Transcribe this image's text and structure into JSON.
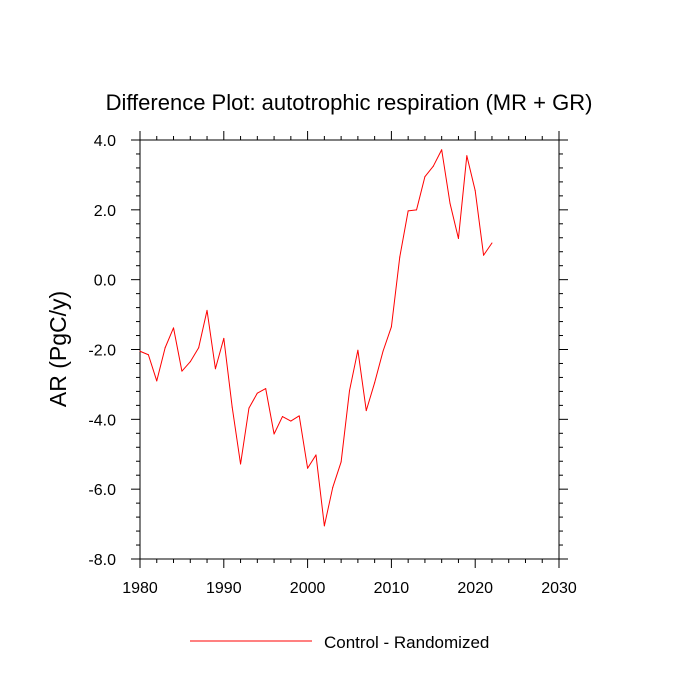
{
  "chart_data": {
    "type": "line",
    "title": "Difference Plot: autotrophic respiration (MR + GR)",
    "xlabel": "",
    "ylabel": "AR  (PgC/y)",
    "xlim": [
      1980,
      2030
    ],
    "ylim": [
      -8.0,
      4.0
    ],
    "x_ticks": [
      1980,
      1990,
      2000,
      2010,
      2020,
      2030
    ],
    "x_tick_labels": [
      "1980",
      "1990",
      "2000",
      "2010",
      "2020",
      "2030"
    ],
    "y_ticks": [
      -8.0,
      -6.0,
      -4.0,
      -2.0,
      0.0,
      2.0,
      4.0
    ],
    "y_tick_labels": [
      "-8.0",
      "-6.0",
      "-4.0",
      "-2.0",
      "0.0",
      "2.0",
      "4.0"
    ],
    "grid": false,
    "legend_position": "bottom-center",
    "series": [
      {
        "name": "Control - Randomized",
        "color": "#ff0000",
        "x": [
          1980,
          1981,
          1982,
          1983,
          1984,
          1985,
          1986,
          1987,
          1988,
          1989,
          1990,
          1991,
          1992,
          1993,
          1994,
          1995,
          1996,
          1997,
          1998,
          1999,
          2000,
          2001,
          2002,
          2003,
          2004,
          2005,
          2006,
          2007,
          2008,
          2009,
          2010,
          2011,
          2012,
          2013,
          2014,
          2015,
          2016,
          2017,
          2018,
          2019,
          2020,
          2021,
          2022
        ],
        "y": [
          -2.05,
          -2.15,
          -2.9,
          -1.95,
          -1.38,
          -2.62,
          -2.35,
          -1.95,
          -0.88,
          -2.55,
          -1.68,
          -3.65,
          -5.28,
          -3.68,
          -3.25,
          -3.12,
          -4.42,
          -3.92,
          -4.05,
          -3.9,
          -5.4,
          -5.02,
          -7.05,
          -5.95,
          -5.22,
          -3.18,
          -2.02,
          -3.75,
          -2.95,
          -2.05,
          -1.35,
          0.65,
          1.97,
          2.0,
          2.95,
          3.25,
          3.72,
          2.18,
          1.18,
          3.55,
          2.55,
          0.7,
          1.05
        ]
      }
    ]
  }
}
